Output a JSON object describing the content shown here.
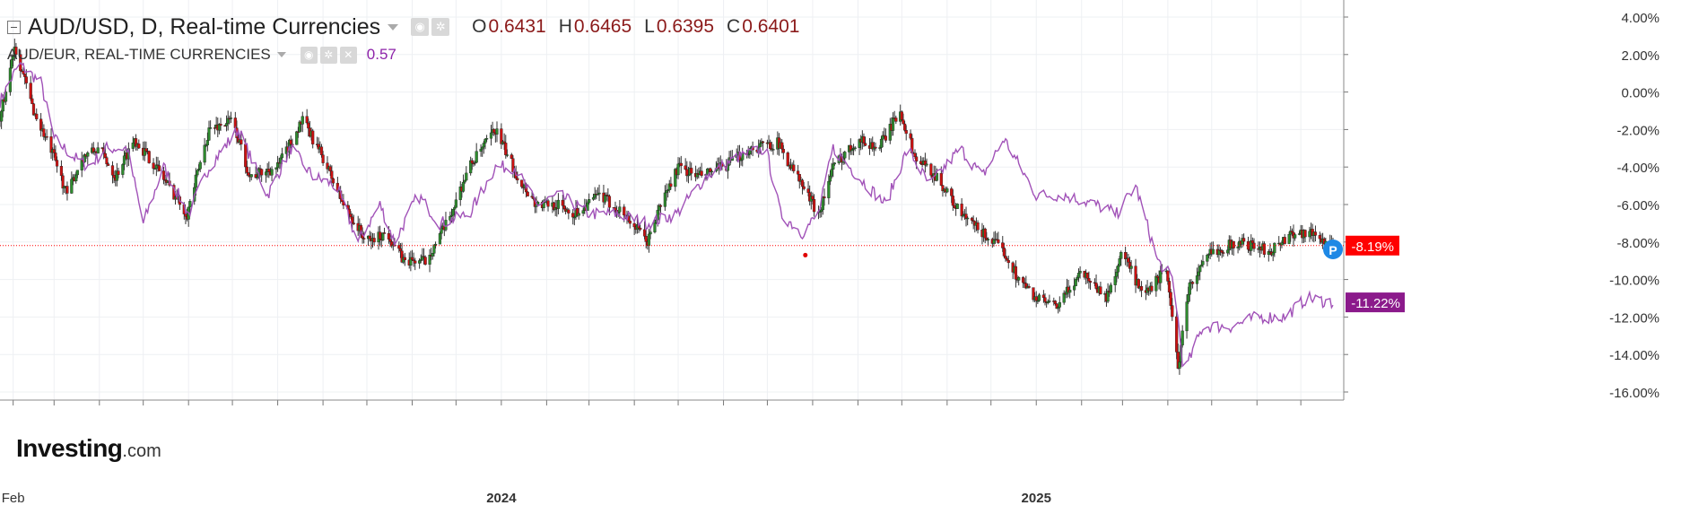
{
  "legend": {
    "main": {
      "title": "AUD/USD, D, Real-time Currencies",
      "open_label": "O",
      "open": "0.6431",
      "high_label": "H",
      "high": "0.6465",
      "low_label": "L",
      "low": "0.6395",
      "close_label": "C",
      "close": "0.6401"
    },
    "compare": {
      "title": "AUD/EUR, REAL-TIME CURRENCIES",
      "value": "0.57",
      "color": "#a152b8"
    }
  },
  "logo": {
    "brand": "Investing",
    "suffix": ".com"
  },
  "chart_data": {
    "type": "line",
    "candlestick_series": "AUD/USD",
    "y_unit": "% change",
    "ylim": [
      -16.5,
      4.5
    ],
    "y_ticks": [
      "4.00%",
      "2.00%",
      "0.00%",
      "-2.00%",
      "-4.00%",
      "-6.00%",
      "-8.00%",
      "-10.00%",
      "-12.00%",
      "-14.00%",
      "-16.00%"
    ],
    "x_range": [
      "2023-01-23",
      "2025-07-23"
    ],
    "x_tick_labels": [
      {
        "date": "2023-02-01",
        "label": "Feb"
      },
      {
        "date": "2024-01-01",
        "label": "2024"
      },
      {
        "date": "2025-01-01",
        "label": "2025"
      }
    ],
    "x_minor_ticks": [
      "2023-03-01",
      "2023-04-01",
      "2023-05-01",
      "2023-06-01",
      "2023-07-01",
      "2023-08-01",
      "2023-09-01",
      "2023-10-01",
      "2023-11-01",
      "2023-12-01",
      "2024-02-01",
      "2024-03-01",
      "2024-04-01",
      "2024-05-01",
      "2024-06-01",
      "2024-07-01",
      "2024-08-01",
      "2024-09-01",
      "2024-10-01",
      "2024-11-01",
      "2024-12-01",
      "2025-02-01",
      "2025-03-01",
      "2025-04-01",
      "2025-05-01",
      "2025-06-01",
      "2025-07-01"
    ],
    "series": [
      {
        "name": "AUD/USD",
        "color_up": "#2e8b2e",
        "color_down": "#cc1111",
        "x": [
          "2023-01-23",
          "2023-02-02",
          "2023-02-15",
          "2023-03-01",
          "2023-03-10",
          "2023-03-20",
          "2023-04-01",
          "2023-04-12",
          "2023-04-25",
          "2023-05-10",
          "2023-05-31",
          "2023-06-15",
          "2023-07-01",
          "2023-07-13",
          "2023-08-01",
          "2023-08-18",
          "2023-09-01",
          "2023-09-15",
          "2023-10-01",
          "2023-10-15",
          "2023-10-26",
          "2023-11-10",
          "2023-11-25",
          "2023-12-10",
          "2023-12-28",
          "2024-01-12",
          "2024-01-25",
          "2024-02-08",
          "2024-02-20",
          "2024-03-08",
          "2024-03-25",
          "2024-04-10",
          "2024-04-19",
          "2024-05-01",
          "2024-05-15",
          "2024-06-01",
          "2024-06-20",
          "2024-07-08",
          "2024-07-25",
          "2024-08-05",
          "2024-08-15",
          "2024-09-01",
          "2024-09-15",
          "2024-09-30",
          "2024-10-10",
          "2024-10-25",
          "2024-11-10",
          "2024-11-25",
          "2024-12-10",
          "2024-12-20",
          "2025-01-01",
          "2025-01-15",
          "2025-02-01",
          "2025-02-18",
          "2025-03-01",
          "2025-03-15",
          "2025-03-30",
          "2025-04-02",
          "2025-04-08",
          "2025-04-15",
          "2025-05-01",
          "2025-05-20",
          "2025-06-10",
          "2025-06-25",
          "2025-07-08",
          "2025-07-23"
        ],
        "values": [
          -1.5,
          2.5,
          -1.0,
          -3.5,
          -5.5,
          -3.5,
          -3.0,
          -4.5,
          -2.5,
          -4.0,
          -6.5,
          -2.0,
          -1.5,
          -4.5,
          -4.0,
          -1.5,
          -3.5,
          -6.0,
          -8.0,
          -7.5,
          -9.0,
          -9.0,
          -7.0,
          -4.0,
          -2.0,
          -4.5,
          -6.0,
          -6.0,
          -6.5,
          -5.5,
          -6.5,
          -8.0,
          -6.0,
          -4.0,
          -4.5,
          -4.0,
          -3.0,
          -2.7,
          -5.0,
          -6.5,
          -4.0,
          -2.5,
          -3.0,
          -1.0,
          -3.5,
          -4.5,
          -6.5,
          -7.5,
          -8.5,
          -10.0,
          -11.0,
          -11.5,
          -9.5,
          -11.0,
          -8.5,
          -11.0,
          -9.5,
          -10.5,
          -14.8,
          -10.5,
          -8.5,
          -8.0,
          -8.5,
          -7.5,
          -7.5,
          -8.19
        ]
      },
      {
        "name": "AUD/EUR",
        "color": "#a152b8",
        "x": [
          "2023-01-23",
          "2023-02-05",
          "2023-02-20",
          "2023-03-01",
          "2023-03-15",
          "2023-03-25",
          "2023-04-05",
          "2023-04-20",
          "2023-05-01",
          "2023-05-15",
          "2023-06-01",
          "2023-06-15",
          "2023-07-05",
          "2023-07-25",
          "2023-08-10",
          "2023-08-25",
          "2023-09-10",
          "2023-09-25",
          "2023-10-10",
          "2023-10-20",
          "2023-11-05",
          "2023-11-20",
          "2023-12-10",
          "2023-12-28",
          "2024-01-10",
          "2024-01-25",
          "2024-02-10",
          "2024-03-01",
          "2024-03-20",
          "2024-04-10",
          "2024-04-30",
          "2024-05-20",
          "2024-06-10",
          "2024-06-30",
          "2024-07-10",
          "2024-07-25",
          "2024-08-05",
          "2024-08-15",
          "2024-09-01",
          "2024-09-20",
          "2024-10-05",
          "2024-10-20",
          "2024-11-10",
          "2024-11-25",
          "2024-12-10",
          "2025-01-01",
          "2025-01-20",
          "2025-02-10",
          "2025-02-25",
          "2025-03-10",
          "2025-03-25",
          "2025-04-05",
          "2025-04-12",
          "2025-04-25",
          "2025-05-15",
          "2025-06-01",
          "2025-06-20",
          "2025-07-05",
          "2025-07-23"
        ],
        "values": [
          -0.5,
          1.5,
          0.5,
          -2.5,
          -3.5,
          -4.0,
          -3.0,
          -3.0,
          -7.0,
          -4.0,
          -6.5,
          -4.0,
          -2.0,
          -5.5,
          -3.0,
          -4.5,
          -5.0,
          -8.0,
          -6.0,
          -8.0,
          -5.5,
          -7.0,
          -6.5,
          -4.0,
          -4.0,
          -6.0,
          -5.5,
          -6.5,
          -6.5,
          -7.0,
          -6.5,
          -4.5,
          -3.5,
          -3.0,
          -6.5,
          -7.5,
          -6.5,
          -3.0,
          -4.5,
          -6.0,
          -3.0,
          -5.0,
          -3.0,
          -4.5,
          -2.5,
          -5.5,
          -5.5,
          -6.0,
          -6.5,
          -5.0,
          -9.0,
          -10.0,
          -15.0,
          -12.5,
          -12.5,
          -12.0,
          -12.0,
          -11.0,
          -11.22
        ]
      }
    ],
    "markers": {
      "last_price_line": {
        "value": "-8.19%",
        "series": "AUD/USD",
        "color": "#ff0000"
      },
      "compare_last_label": {
        "value": "-11.22%",
        "series": "AUD/EUR",
        "color": "#8b1a8b"
      },
      "p_badge": {
        "label": "P",
        "color": "#1e88e5"
      },
      "red_dot": {
        "date": "2024-07-27",
        "value": -8.7
      }
    },
    "grid": true
  }
}
